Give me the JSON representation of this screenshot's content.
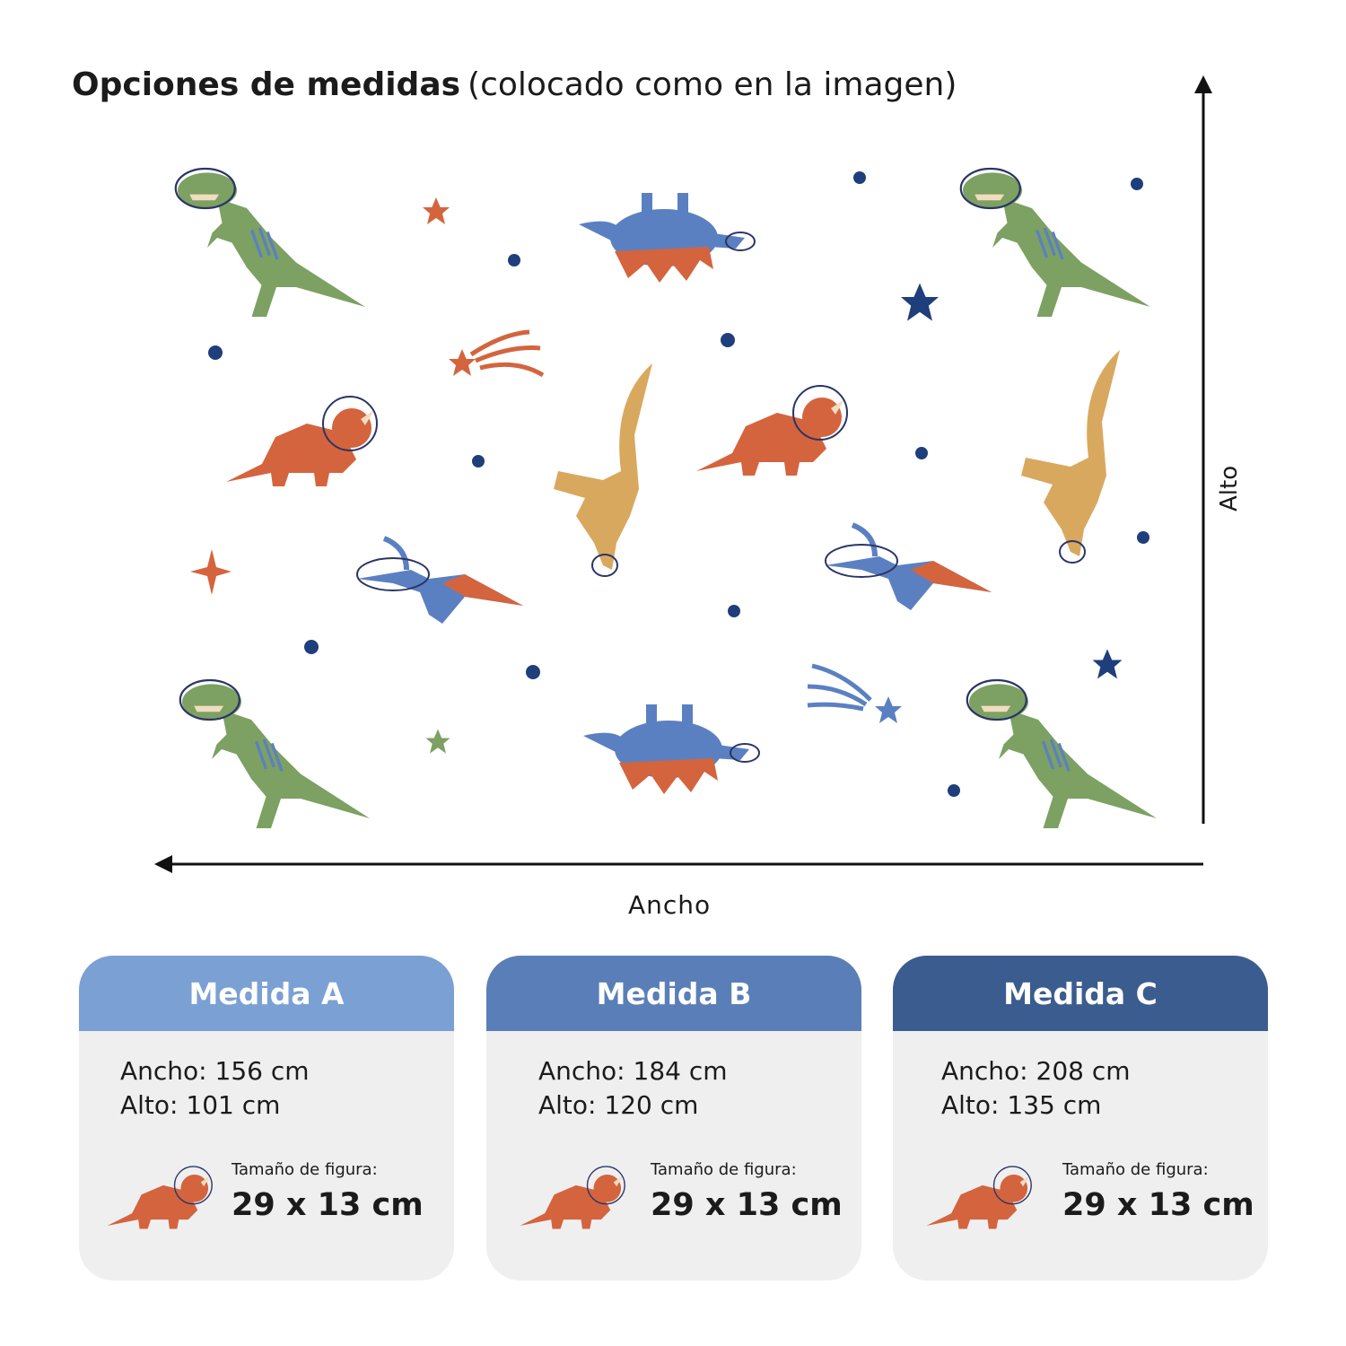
{
  "title": {
    "bold": "Opciones de medidas",
    "regular": "(colocado como en la imagen)"
  },
  "axes": {
    "height_label": "Alto",
    "width_label": "Ancho"
  },
  "colors": {
    "green": "#7ca162",
    "orange": "#d4643e",
    "yellow": "#d9a85f",
    "blue": "#5b80c2",
    "navy": "#1f3e7c",
    "header_a": "#7ba0d4",
    "header_b": "#5a7fb8",
    "header_c": "#3b5c8e",
    "card_bg": "#efeff0"
  },
  "cards": [
    {
      "title": "Medida A",
      "width": "Ancho: 156 cm",
      "height": "Alto: 101 cm",
      "figure_label": "Tamaño de figura:",
      "figure_size": "29 x 13 cm"
    },
    {
      "title": "Medida B",
      "width": "Ancho: 184 cm",
      "height": "Alto: 120 cm",
      "figure_label": "Tamaño de figura:",
      "figure_size": "29 x 13 cm"
    },
    {
      "title": "Medida C",
      "width": "Ancho: 208 cm",
      "height": "Alto: 135 cm",
      "figure_label": "Tamaño de figura:",
      "figure_size": "29 x 13 cm"
    }
  ]
}
